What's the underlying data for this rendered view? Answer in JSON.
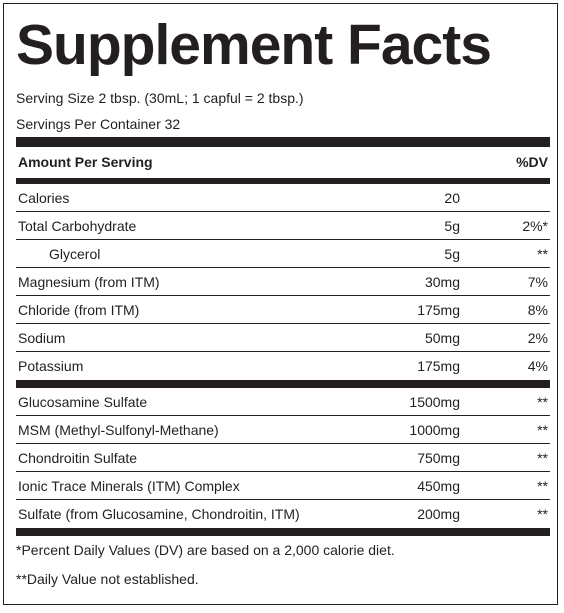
{
  "header": {
    "title": "Supplement Facts",
    "serving_size": "Serving Size 2 tbsp. (30mL; 1 capful = 2 tbsp.)",
    "servings_per_container": "Servings Per Container 32"
  },
  "table": {
    "columns": [
      "Amount Per Serving",
      "%DV"
    ],
    "rows": [
      [
        "Calories",
        "20"
      ],
      [
        "Total Carbohydrate",
        "5g",
        "2%*"
      ],
      [
        "Glycerol",
        "5g",
        "**"
      ],
      [
        "Magnesium (from ITM)",
        "30mg",
        "7%"
      ],
      [
        "Chloride (from ITM)",
        "175mg",
        "8%"
      ],
      [
        "Sodium",
        "50mg",
        "2%"
      ],
      [
        "Potassium",
        "175mg",
        "4%"
      ]
    ],
    "rows_2": [
      [
        "Glucosamine Sulfate",
        "1500mg",
        "**"
      ],
      [
        "MSM (Methyl-Sulfonyl-Methane)",
        "1000mg",
        "**"
      ],
      [
        "Chondroitin Sulfate",
        "750mg",
        "**"
      ],
      [
        "Ionic Trace Minerals (ITM) Complex",
        "450mg",
        "**"
      ],
      [
        "Sulfate (from Glucosamine, Chondroitin, ITM)",
        "200mg",
        "**"
      ]
    ]
  },
  "footnotes": [
    "*Percent Daily Values (DV) are based on a 2,000 calorie diet.",
    "**Daily Value not established."
  ]
}
